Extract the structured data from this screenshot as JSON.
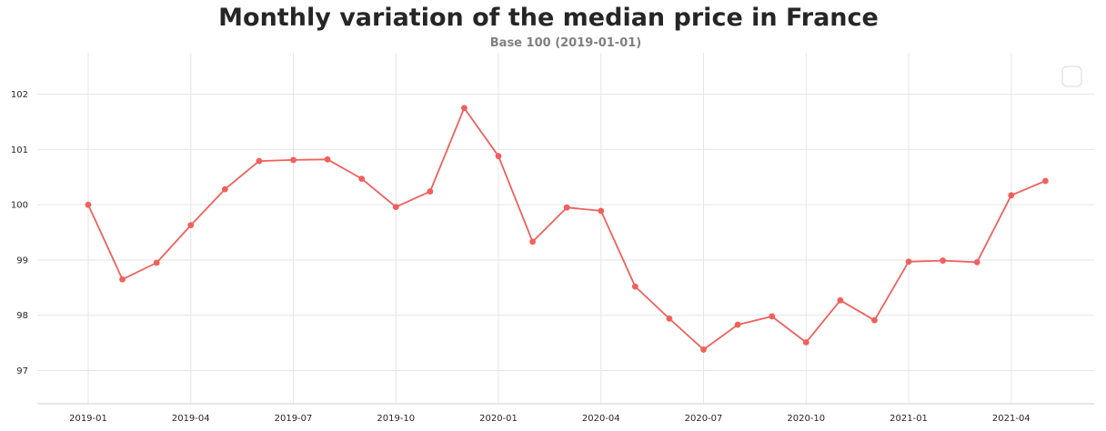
{
  "chart_data": {
    "type": "line",
    "title": "Monthly variation of the median price in France",
    "subtitle": "Base 100 (2019-01-01)",
    "xlabel": "",
    "ylabel": "",
    "x": [
      "2019-01",
      "2019-02",
      "2019-03",
      "2019-04",
      "2019-05",
      "2019-06",
      "2019-07",
      "2019-08",
      "2019-09",
      "2019-10",
      "2019-11",
      "2019-12",
      "2020-01",
      "2020-02",
      "2020-03",
      "2020-04",
      "2020-05",
      "2020-06",
      "2020-07",
      "2020-08",
      "2020-09",
      "2020-10",
      "2020-11",
      "2020-12",
      "2021-01",
      "2021-02",
      "2021-03",
      "2021-04",
      "2021-05"
    ],
    "series": [
      {
        "values": [
          100.0,
          98.65,
          98.95,
          99.63,
          100.28,
          100.79,
          100.81,
          100.82,
          100.47,
          99.96,
          100.24,
          101.75,
          100.88,
          99.33,
          99.95,
          99.89,
          98.52,
          97.94,
          97.38,
          97.83,
          97.98,
          97.51,
          98.27,
          97.91,
          98.97,
          98.99,
          98.96,
          100.17,
          100.43
        ],
        "color": "#f0605d"
      }
    ],
    "x_tick_labels": [
      "2019-01",
      "2019-04",
      "2019-07",
      "2019-10",
      "2020-01",
      "2020-04",
      "2020-07",
      "2020-10",
      "2021-01",
      "2021-04"
    ],
    "y_ticks": [
      97,
      98,
      99,
      100,
      101,
      102
    ],
    "ylim": [
      96.4,
      102.75
    ],
    "grid": true,
    "legend": "top-right (empty)",
    "colors": {
      "line": "#f0605d",
      "grid": "#e6e6e6",
      "axis": "#cccccc"
    }
  }
}
